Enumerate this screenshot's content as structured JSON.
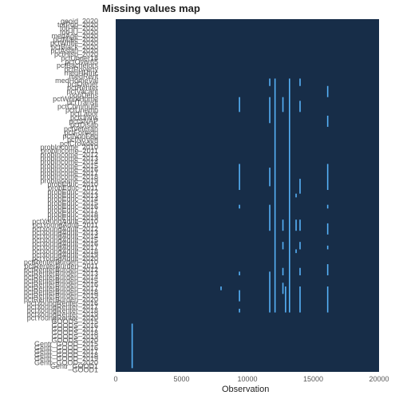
{
  "chart_data": {
    "type": "heatmap",
    "title": "Missing values map",
    "xlabel": "Observation",
    "ylabel": "",
    "xlim": [
      0,
      20000
    ],
    "x_ticks": [
      0,
      5000,
      10000,
      15000,
      20000
    ],
    "row_count": 95,
    "y_tick_labels": [
      "geoid_2020",
      "totPop_2020",
      "totHH_2020",
      "totHU_2020",
      "medAge_2020",
      "pctMale_2020",
      "pctWhite_2020",
      "pctBlack_2020",
      "pctAsian_2020",
      "pctHisp_2020",
      "pctUnder18",
      "pctOver65",
      "pctBachelors",
      "pctPoverty",
      "medHHInc",
      "medRent",
      "medHomeVal",
      "pctOwner",
      "pctRenter",
      "pctVacant",
      "popDens",
      "pctWorkHome",
      "pctTransit",
      "pctCommute",
      "pctUnemp",
      "pctLabor",
      "pctUnins",
      "pctSNAP",
      "pctDisab",
      "pctVeteran",
      "pctForeign",
      "pctNonEng",
      "pctNoVeh",
      "pctCrowded",
      "probIncome_2010",
      "probIncome_2011",
      "probIncome_2012",
      "probIncome_2013",
      "probIncome_2014",
      "probIncome_2015",
      "probIncome_2016",
      "probIncome_2017",
      "probIncome_2018",
      "probIncome_2019",
      "probEduc_2010",
      "probEduc_2011",
      "probEduc_2012",
      "probEduc_2013",
      "probEduc_2014",
      "probEduc_2015",
      "probEduc_2016",
      "probEduc_2017",
      "probEduc_2018",
      "probEduc_2019",
      "pctYoungAdult_2010",
      "pctYoungAdult_2011",
      "pctYoungAdult_2012",
      "pctYoungAdult_2013",
      "pctYoungAdult_2014",
      "pctYoungAdult_2015",
      "pctYoungAdult_2016",
      "pctYoungAdult_2017",
      "pctYoungAdult_2018",
      "pctYoungAdult_2019",
      "pctYoungAdult_2020",
      "pctRenterBurden_2010",
      "pctRenterBurden_2011",
      "pctRenterBurden_2012",
      "pctRenterBurden_2013",
      "pctRenterBurden_2014",
      "pctRenterBurden_2015",
      "pctRenterBurden_2016",
      "pctRenterBurden_2017",
      "pctRenterBurden_2018",
      "pctRenterBurden_2019",
      "pctRenterBurden_2020",
      "pctYoungRenter_2016",
      "pctYoungRenter_2017",
      "pctYoungRenter_2018",
      "pctYoungRenter_2019",
      "pctYoungRenter_2020",
      "GOODS_2015",
      "GOODS_2016",
      "GOODS_2017",
      "GOODS_2018",
      "GOODS_2019",
      "GOODS_2020",
      "Gentr_GOOD_2015",
      "Gentr_GOOD_2016",
      "Gentr_GOOD_2017",
      "Gentr_GOOD_2018",
      "Gentr_GOOD_2019",
      "Gentr_GOOD_2020",
      "Gentr_GOOD1",
      "GOOD1"
    ],
    "missing_segments": [
      {
        "x": 9400,
        "rows": [
          21,
          25
        ]
      },
      {
        "x": 9400,
        "rows": [
          39,
          46
        ]
      },
      {
        "x": 9400,
        "rows": [
          50,
          51
        ]
      },
      {
        "x": 9400,
        "rows": [
          68,
          69
        ]
      },
      {
        "x": 9400,
        "rows": [
          73,
          76
        ]
      },
      {
        "x": 9400,
        "rows": [
          78,
          79
        ]
      },
      {
        "x": 8000,
        "rows": [
          72,
          73
        ]
      },
      {
        "x": 11700,
        "rows": [
          16,
          18
        ]
      },
      {
        "x": 11700,
        "rows": [
          21,
          28
        ]
      },
      {
        "x": 11700,
        "rows": [
          40,
          45
        ]
      },
      {
        "x": 11700,
        "rows": [
          50,
          57
        ]
      },
      {
        "x": 11700,
        "rows": [
          68,
          79
        ]
      },
      {
        "x": 12100,
        "rows": [
          16,
          79
        ]
      },
      {
        "x": 12700,
        "rows": [
          21,
          25
        ]
      },
      {
        "x": 12700,
        "rows": [
          54,
          57
        ]
      },
      {
        "x": 12700,
        "rows": [
          60,
          62
        ]
      },
      {
        "x": 12700,
        "rows": [
          67,
          69
        ]
      },
      {
        "x": 12700,
        "rows": [
          71,
          74
        ]
      },
      {
        "x": 12900,
        "rows": [
          72,
          79
        ]
      },
      {
        "x": 13200,
        "rows": [
          16,
          79
        ]
      },
      {
        "x": 13700,
        "rows": [
          47,
          48
        ]
      },
      {
        "x": 13700,
        "rows": [
          54,
          57
        ]
      },
      {
        "x": 13700,
        "rows": [
          62,
          63
        ]
      },
      {
        "x": 14000,
        "rows": [
          16,
          18
        ]
      },
      {
        "x": 14000,
        "rows": [
          22,
          25
        ]
      },
      {
        "x": 14000,
        "rows": [
          43,
          47
        ]
      },
      {
        "x": 14000,
        "rows": [
          54,
          57
        ]
      },
      {
        "x": 14000,
        "rows": [
          60,
          62
        ]
      },
      {
        "x": 14000,
        "rows": [
          67,
          69
        ]
      },
      {
        "x": 14000,
        "rows": [
          72,
          79
        ]
      },
      {
        "x": 16100,
        "rows": [
          18,
          21
        ]
      },
      {
        "x": 16100,
        "rows": [
          26,
          29
        ]
      },
      {
        "x": 16100,
        "rows": [
          39,
          46
        ]
      },
      {
        "x": 16100,
        "rows": [
          50,
          51
        ]
      },
      {
        "x": 16100,
        "rows": [
          55,
          58
        ]
      },
      {
        "x": 16100,
        "rows": [
          61,
          62
        ]
      },
      {
        "x": 16100,
        "rows": [
          66,
          69
        ]
      },
      {
        "x": 16100,
        "rows": [
          72,
          79
        ]
      },
      {
        "x": 1250,
        "rows": [
          82,
          94
        ]
      }
    ],
    "colors": {
      "present": "#172d48",
      "missing": "#56b1f7"
    },
    "grid": false,
    "legend": "none"
  }
}
